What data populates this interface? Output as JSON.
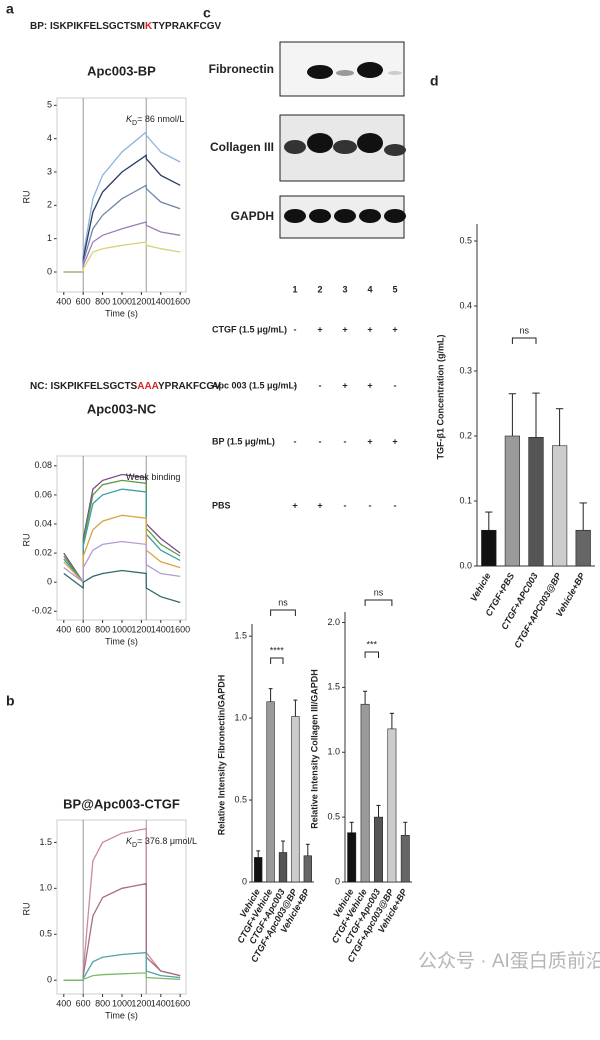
{
  "panel_labels": [
    "a",
    "b",
    "c",
    "d"
  ],
  "blot": {
    "proteins": [
      "Fibronectin",
      "Collagen III",
      "GAPDH"
    ],
    "lanes": [
      "1",
      "2",
      "3",
      "4",
      "5"
    ],
    "treatments": [
      {
        "name": "CTGF (1.5 μg/mL)",
        "signs": [
          "-",
          "+",
          "+",
          "+",
          "+"
        ]
      },
      {
        "name": "Apc 003 (1.5 μg/mL)",
        "signs": [
          "-",
          "-",
          "+",
          "+",
          "-"
        ]
      },
      {
        "name": "BP (1.5 μg/mL)",
        "signs": [
          "-",
          "-",
          "-",
          "+",
          "+"
        ]
      },
      {
        "name": "PBS",
        "signs": [
          "+",
          "+",
          "-",
          "-",
          "-"
        ]
      }
    ]
  },
  "watermark": "公众号 · AI蛋白质前沿站",
  "chart_data": [
    {
      "type": "line",
      "title": "Apc003-BP",
      "subtitle": [
        "BP: ISKPIKFELSGCTSM",
        "K",
        "TYPRAKFCGV"
      ],
      "highlight_color": "#d62728",
      "annotation": [
        "K",
        "D",
        "= 86 nmol/L"
      ],
      "x_label": "Time (s)",
      "y_label": "RU",
      "x": [
        400,
        600,
        601,
        700,
        800,
        1000,
        1250,
        1251,
        1400,
        1600
      ],
      "xlim": [
        330,
        1660
      ],
      "xticks": [
        400,
        600,
        800,
        1000,
        1200,
        1400,
        1600
      ],
      "ylim": [
        -0.6,
        5.1
      ],
      "yticks": [
        0,
        1,
        2,
        3,
        4,
        5
      ],
      "vlines": [
        600,
        1250
      ],
      "series": [
        {
          "color": "#8fb3d9",
          "values": [
            0,
            0,
            0.5,
            2.2,
            2.9,
            3.6,
            4.2,
            4.1,
            3.6,
            3.3
          ]
        },
        {
          "color": "#2b3a67",
          "values": [
            0,
            0,
            0.4,
            1.8,
            2.4,
            3.0,
            3.5,
            3.4,
            2.9,
            2.6
          ]
        },
        {
          "color": "#6f86a8",
          "values": [
            0,
            0,
            0.3,
            1.3,
            1.7,
            2.2,
            2.6,
            2.5,
            2.1,
            1.9
          ]
        },
        {
          "color": "#9b7fb8",
          "values": [
            0,
            0,
            0.2,
            0.9,
            1.1,
            1.3,
            1.5,
            1.4,
            1.2,
            1.1
          ]
        },
        {
          "color": "#d8d27a",
          "values": [
            0,
            0,
            0.1,
            0.6,
            0.7,
            0.8,
            0.9,
            0.8,
            0.7,
            0.6
          ]
        }
      ]
    },
    {
      "type": "line",
      "title": "Apc003-NC",
      "subtitle": [
        "NC: ISKPIKFELSGCTS",
        "AAA",
        "YPRAKFCGV"
      ],
      "highlight_color": "#d62728",
      "annotation": [
        "Weak binding"
      ],
      "x_label": "Time (s)",
      "y_label": "RU",
      "x": [
        400,
        600,
        601,
        700,
        800,
        1000,
        1250,
        1251,
        1400,
        1600
      ],
      "xlim": [
        330,
        1660
      ],
      "xticks": [
        400,
        600,
        800,
        1000,
        1200,
        1400,
        1600
      ],
      "ylim": [
        -0.026,
        0.084
      ],
      "yticks": [
        0.08,
        0.06,
        0.04,
        0.02,
        0,
        -0.02
      ],
      "vlines": [
        600,
        1250
      ],
      "series": [
        {
          "color": "#7a4a8c",
          "values": [
            0.02,
            0.0,
            0.03,
            0.064,
            0.07,
            0.074,
            0.072,
            0.04,
            0.03,
            0.02
          ]
        },
        {
          "color": "#5a9a3c",
          "values": [
            0.018,
            0.0,
            0.028,
            0.06,
            0.067,
            0.07,
            0.068,
            0.037,
            0.026,
            0.018
          ]
        },
        {
          "color": "#3aa0a0",
          "values": [
            0.016,
            0.0,
            0.025,
            0.054,
            0.06,
            0.064,
            0.062,
            0.033,
            0.022,
            0.015
          ]
        },
        {
          "color": "#d9a441",
          "values": [
            0.014,
            0.0,
            0.018,
            0.036,
            0.042,
            0.046,
            0.044,
            0.022,
            0.014,
            0.01
          ]
        },
        {
          "color": "#b49bd1",
          "values": [
            0.01,
            0.0,
            0.01,
            0.022,
            0.026,
            0.028,
            0.026,
            0.012,
            0.006,
            0.004
          ]
        },
        {
          "color": "#2e6b66",
          "values": [
            0.006,
            -0.004,
            0.0,
            0.004,
            0.006,
            0.008,
            0.006,
            -0.004,
            -0.01,
            -0.014
          ]
        }
      ]
    },
    {
      "type": "line",
      "title": "BP@Apc003-CTGF",
      "annotation": [
        "K",
        "D",
        "= 376.8 μmol/L"
      ],
      "x_label": "Time (s)",
      "y_label": "RU",
      "x": [
        400,
        600,
        601,
        700,
        800,
        1000,
        1250,
        1251,
        1400,
        1600
      ],
      "xlim": [
        330,
        1660
      ],
      "xticks": [
        400,
        600,
        800,
        1000,
        1200,
        1400,
        1600
      ],
      "ylim": [
        -0.15,
        1.7
      ],
      "yticks": [
        0,
        0.5,
        {
          "value": 1,
          "label": "1.0"
        },
        1.5
      ],
      "vlines": [
        600,
        1250
      ],
      "series": [
        {
          "color": "#c98a9b",
          "values": [
            0,
            0,
            0.1,
            1.3,
            1.5,
            1.6,
            1.65,
            0.3,
            0.1,
            0.05
          ]
        },
        {
          "color": "#a5707e",
          "values": [
            0,
            0,
            0.05,
            0.7,
            0.9,
            1.0,
            1.05,
            0.25,
            0.1,
            0.05
          ]
        },
        {
          "color": "#4fa3a8",
          "values": [
            0,
            0,
            0.02,
            0.2,
            0.25,
            0.28,
            0.3,
            0.1,
            0.05,
            0.03
          ]
        },
        {
          "color": "#7fb86a",
          "values": [
            0,
            0,
            0.01,
            0.05,
            0.06,
            0.07,
            0.08,
            0.03,
            0.02,
            0.01
          ]
        }
      ]
    },
    {
      "type": "bar",
      "y_label": "Relative Intensity Fibronectin/GAPDH",
      "categories": [
        "Vehicle",
        "CTGF+Vehicle",
        "CTGF+Apc003",
        "CTGF+Apc003@BP",
        "Vehicle+BP"
      ],
      "values": [
        0.15,
        1.1,
        0.18,
        1.01,
        0.16
      ],
      "errors": [
        0.04,
        0.08,
        0.07,
        0.1,
        0.07
      ],
      "colors": [
        "#111111",
        "#9a9a9a",
        "#555555",
        "#cccccc",
        "#666666"
      ],
      "ylim": [
        0,
        1.55
      ],
      "yticks": [
        0,
        0.5,
        {
          "value": 1,
          "label": "1.0"
        },
        1.5
      ],
      "annotations": [
        "****",
        "ns"
      ]
    },
    {
      "type": "bar",
      "y_label": "Relative Intensity Collagen III/GAPDH",
      "categories": [
        "Vehicle",
        "CTGF+Vehicle",
        "CTGF+Apc003",
        "CTGF+Apc003@BP",
        "Vehicle+BP"
      ],
      "values": [
        0.38,
        1.37,
        0.5,
        1.18,
        0.36
      ],
      "errors": [
        0.08,
        0.1,
        0.09,
        0.12,
        0.1
      ],
      "colors": [
        "#111111",
        "#9a9a9a",
        "#555555",
        "#cccccc",
        "#666666"
      ],
      "ylim": [
        0,
        2.05
      ],
      "yticks": [
        0,
        0.5,
        {
          "value": 1,
          "label": "1.0"
        },
        1.5,
        {
          "value": 2,
          "label": "2.0"
        }
      ],
      "annotations": [
        "***",
        "ns"
      ]
    },
    {
      "type": "bar",
      "y_label": "TGF-β1 Concentration (g/mL)",
      "categories": [
        "Vehicle",
        "CTGF+PBS",
        "CTGF+APC003",
        "CTGF+APC003@BP",
        "Vehicle+BP"
      ],
      "values": [
        0.055,
        0.2,
        0.198,
        0.185,
        0.055
      ],
      "errors": [
        0.028,
        0.065,
        0.068,
        0.057,
        0.042
      ],
      "colors": [
        "#111111",
        "#9a9a9a",
        "#555555",
        "#cccccc",
        "#666666"
      ],
      "ylim": [
        0,
        0.52
      ],
      "yticks": [
        {
          "value": 0,
          "label": "0.0"
        },
        0.1,
        0.2,
        0.3,
        0.4,
        0.5
      ],
      "annotations": [
        "ns"
      ]
    }
  ]
}
